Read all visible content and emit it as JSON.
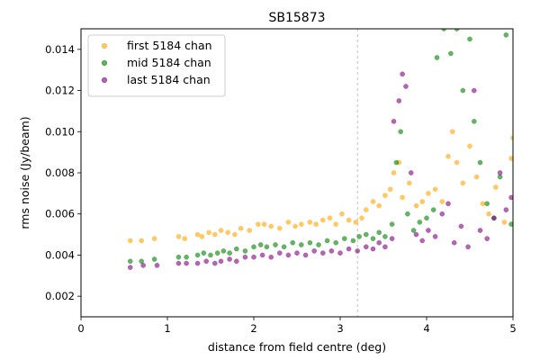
{
  "chart_data": {
    "type": "scatter",
    "title": "SB15873",
    "xlabel": "distance from field centre (deg)",
    "ylabel": "rms noise (Jy/beam)",
    "xlim": [
      0,
      5
    ],
    "ylim": [
      0.001,
      0.015
    ],
    "xticks": [
      "0",
      "1",
      "2",
      "3",
      "4",
      "5"
    ],
    "yticks": [
      "0.002",
      "0.004",
      "0.006",
      "0.008",
      "0.010",
      "0.012",
      "0.014"
    ],
    "vline_x": 3.2,
    "grid": false,
    "legend_position": "top-left",
    "series": [
      {
        "name": "first 5184 chan",
        "color": "#FFA500",
        "points": [
          [
            0.57,
            0.0047
          ],
          [
            0.7,
            0.0047
          ],
          [
            0.85,
            0.0048
          ],
          [
            1.13,
            0.0049
          ],
          [
            1.2,
            0.0048
          ],
          [
            1.35,
            0.005
          ],
          [
            1.4,
            0.0049
          ],
          [
            1.48,
            0.0051
          ],
          [
            1.55,
            0.005
          ],
          [
            1.62,
            0.0052
          ],
          [
            1.7,
            0.0051
          ],
          [
            1.78,
            0.005
          ],
          [
            1.85,
            0.0053
          ],
          [
            1.95,
            0.0052
          ],
          [
            2.05,
            0.0055
          ],
          [
            2.12,
            0.0055
          ],
          [
            2.2,
            0.0054
          ],
          [
            2.3,
            0.0053
          ],
          [
            2.4,
            0.0056
          ],
          [
            2.48,
            0.0054
          ],
          [
            2.55,
            0.0055
          ],
          [
            2.65,
            0.0056
          ],
          [
            2.72,
            0.0055
          ],
          [
            2.8,
            0.0057
          ],
          [
            2.88,
            0.0058
          ],
          [
            2.95,
            0.0055
          ],
          [
            3.02,
            0.006
          ],
          [
            3.1,
            0.0057
          ],
          [
            3.18,
            0.0056
          ],
          [
            3.25,
            0.0058
          ],
          [
            3.3,
            0.0062
          ],
          [
            3.38,
            0.0066
          ],
          [
            3.45,
            0.0064
          ],
          [
            3.52,
            0.0069
          ],
          [
            3.58,
            0.0072
          ],
          [
            3.62,
            0.008
          ],
          [
            3.68,
            0.0085
          ],
          [
            3.72,
            0.0068
          ],
          [
            3.8,
            0.0075
          ],
          [
            3.88,
            0.0064
          ],
          [
            3.95,
            0.0066
          ],
          [
            4.02,
            0.007
          ],
          [
            4.1,
            0.0072
          ],
          [
            4.18,
            0.0066
          ],
          [
            4.25,
            0.0088
          ],
          [
            4.3,
            0.01
          ],
          [
            4.35,
            0.0085
          ],
          [
            4.42,
            0.0075
          ],
          [
            4.5,
            0.0093
          ],
          [
            4.58,
            0.0078
          ],
          [
            4.65,
            0.0065
          ],
          [
            4.72,
            0.006
          ],
          [
            4.8,
            0.0073
          ],
          [
            4.9,
            0.0056
          ],
          [
            4.98,
            0.0087
          ],
          [
            5.0,
            0.0097
          ]
        ]
      },
      {
        "name": "mid 5184 chan",
        "color": "#008000",
        "points": [
          [
            0.57,
            0.0037
          ],
          [
            0.7,
            0.0037
          ],
          [
            0.85,
            0.0038
          ],
          [
            1.13,
            0.0039
          ],
          [
            1.22,
            0.0039
          ],
          [
            1.35,
            0.004
          ],
          [
            1.42,
            0.0041
          ],
          [
            1.5,
            0.004
          ],
          [
            1.58,
            0.0041
          ],
          [
            1.65,
            0.0042
          ],
          [
            1.72,
            0.0041
          ],
          [
            1.8,
            0.0043
          ],
          [
            1.9,
            0.0042
          ],
          [
            2.0,
            0.0044
          ],
          [
            2.08,
            0.0045
          ],
          [
            2.15,
            0.0044
          ],
          [
            2.25,
            0.0045
          ],
          [
            2.35,
            0.0044
          ],
          [
            2.45,
            0.0046
          ],
          [
            2.55,
            0.0045
          ],
          [
            2.65,
            0.0046
          ],
          [
            2.75,
            0.0045
          ],
          [
            2.85,
            0.0047
          ],
          [
            2.95,
            0.0046
          ],
          [
            3.05,
            0.0048
          ],
          [
            3.15,
            0.0047
          ],
          [
            3.22,
            0.0049
          ],
          [
            3.3,
            0.005
          ],
          [
            3.38,
            0.0048
          ],
          [
            3.45,
            0.0051
          ],
          [
            3.52,
            0.0049
          ],
          [
            3.6,
            0.0055
          ],
          [
            3.65,
            0.0085
          ],
          [
            3.7,
            0.01
          ],
          [
            3.78,
            0.006
          ],
          [
            3.85,
            0.0052
          ],
          [
            3.92,
            0.0056
          ],
          [
            4.0,
            0.0058
          ],
          [
            4.08,
            0.0062
          ],
          [
            4.12,
            0.0136
          ],
          [
            4.2,
            0.015
          ],
          [
            4.28,
            0.0138
          ],
          [
            4.35,
            0.015
          ],
          [
            4.42,
            0.012
          ],
          [
            4.5,
            0.0145
          ],
          [
            4.55,
            0.0105
          ],
          [
            4.62,
            0.0085
          ],
          [
            4.7,
            0.0065
          ],
          [
            4.78,
            0.0058
          ],
          [
            4.85,
            0.0078
          ],
          [
            4.92,
            0.0147
          ],
          [
            4.98,
            0.0055
          ]
        ]
      },
      {
        "name": "last 5184 chan",
        "color": "#800080",
        "points": [
          [
            0.57,
            0.0034
          ],
          [
            0.72,
            0.0035
          ],
          [
            0.88,
            0.0035
          ],
          [
            1.13,
            0.0036
          ],
          [
            1.22,
            0.0036
          ],
          [
            1.35,
            0.0036
          ],
          [
            1.45,
            0.0037
          ],
          [
            1.55,
            0.0036
          ],
          [
            1.62,
            0.0037
          ],
          [
            1.72,
            0.0038
          ],
          [
            1.8,
            0.0037
          ],
          [
            1.9,
            0.0039
          ],
          [
            2.0,
            0.0039
          ],
          [
            2.1,
            0.004
          ],
          [
            2.2,
            0.0039
          ],
          [
            2.3,
            0.0041
          ],
          [
            2.4,
            0.004
          ],
          [
            2.5,
            0.0041
          ],
          [
            2.6,
            0.004
          ],
          [
            2.7,
            0.0042
          ],
          [
            2.8,
            0.0041
          ],
          [
            2.9,
            0.0042
          ],
          [
            3.0,
            0.0041
          ],
          [
            3.1,
            0.0043
          ],
          [
            3.2,
            0.0042
          ],
          [
            3.3,
            0.0044
          ],
          [
            3.38,
            0.0043
          ],
          [
            3.45,
            0.0046
          ],
          [
            3.52,
            0.0044
          ],
          [
            3.6,
            0.0048
          ],
          [
            3.62,
            0.0105
          ],
          [
            3.68,
            0.0115
          ],
          [
            3.72,
            0.0128
          ],
          [
            3.76,
            0.0122
          ],
          [
            3.82,
            0.008
          ],
          [
            3.88,
            0.005
          ],
          [
            3.95,
            0.0047
          ],
          [
            4.02,
            0.0052
          ],
          [
            4.1,
            0.0049
          ],
          [
            4.18,
            0.006
          ],
          [
            4.25,
            0.0065
          ],
          [
            4.32,
            0.0046
          ],
          [
            4.4,
            0.0054
          ],
          [
            4.48,
            0.0044
          ],
          [
            4.55,
            0.012
          ],
          [
            4.62,
            0.0052
          ],
          [
            4.7,
            0.0048
          ],
          [
            4.78,
            0.0058
          ],
          [
            4.85,
            0.008
          ],
          [
            4.92,
            0.0062
          ],
          [
            4.98,
            0.0068
          ]
        ]
      }
    ]
  }
}
